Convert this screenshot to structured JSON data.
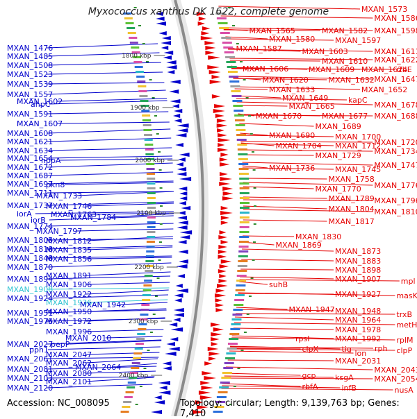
{
  "title": "Myxococcus xanthus DK 1622, complete genome",
  "footer": {
    "accession": "Accession: NC_008095",
    "summary": "Topology: circular; Length: 9,139,763 bp; Genes: 7,410"
  },
  "colors": {
    "forward_strand": "#e60000",
    "reverse_strand": "#0000cc",
    "highlight": "#33c4d4",
    "backbone": "#8a8a8a",
    "tick": "#2e8b2e"
  },
  "scale_ticks": [
    {
      "label": "1800 kbp"
    },
    {
      "label": "1900 kbp"
    },
    {
      "label": "2000 kbp"
    },
    {
      "label": "2100 kbp"
    },
    {
      "label": "2200 kbp"
    },
    {
      "label": "2300 kbp"
    },
    {
      "label": "2400 kbp"
    }
  ],
  "left_labels": [
    {
      "text": "MXAN_1476"
    },
    {
      "text": "MXAN_1485"
    },
    {
      "text": "MXAN_1508"
    },
    {
      "text": "MXAN_1523"
    },
    {
      "text": "MXAN_1539"
    },
    {
      "text": "MXAN_1557"
    },
    {
      "text": "ahpC"
    },
    {
      "text": "MXAN_1602"
    },
    {
      "text": "MXAN_1591"
    },
    {
      "text": "MXAN_1607"
    },
    {
      "text": "MXAN_1608"
    },
    {
      "text": "MXAN_1621"
    },
    {
      "text": "MXAN_1634"
    },
    {
      "text": "MXAN_1654"
    },
    {
      "text": "hppA"
    },
    {
      "text": "MXAN_1672"
    },
    {
      "text": "MXAN_1687"
    },
    {
      "text": "MXAN_1697"
    },
    {
      "text": "pkn8"
    },
    {
      "text": "MXAN_1711"
    },
    {
      "text": "MXAN_1733"
    },
    {
      "text": "MXAN_1737"
    },
    {
      "text": "MXAN_1746"
    },
    {
      "text": "iorA"
    },
    {
      "text": "MXAN_1763"
    },
    {
      "text": "iorB"
    },
    {
      "text": "MXAN_1784"
    },
    {
      "text": "MXAN_1774"
    },
    {
      "text": "MXAN_1797"
    },
    {
      "text": "MXAN_1805"
    },
    {
      "text": "MXAN_1812"
    },
    {
      "text": "MXAN_1818"
    },
    {
      "text": "MXAN_1835"
    },
    {
      "text": "MXAN_1848"
    },
    {
      "text": "MXAN_1856"
    },
    {
      "text": "MXAN_1870"
    },
    {
      "text": "MXAN_1891"
    },
    {
      "text": "MXAN_1894"
    },
    {
      "text": "MXAN_1906"
    },
    {
      "text": "MXAN_1908",
      "highlight": true
    },
    {
      "text": "MXAN_1922"
    },
    {
      "text": "MXAN_1924"
    },
    {
      "text": "MXAN_1936",
      "highlight": true
    },
    {
      "text": "MXAN_1942"
    },
    {
      "text": "MXAN_1950"
    },
    {
      "text": "MXAN_1951"
    },
    {
      "text": "MXAN_1972"
    },
    {
      "text": "MXAN_1975"
    },
    {
      "text": "MXAN_1996"
    },
    {
      "text": "MXAN_2010"
    },
    {
      "text": "MXAN_2027"
    },
    {
      "text": "pepP"
    },
    {
      "text": "pph1"
    },
    {
      "text": "MXAN_2047"
    },
    {
      "text": "MXAN_2061"
    },
    {
      "text": "MXAN_2062"
    },
    {
      "text": "MXAN_2064"
    },
    {
      "text": "MXAN_2081"
    },
    {
      "text": "MXAN_2080"
    },
    {
      "text": "MXAN_2103"
    },
    {
      "text": "MXAN_2101"
    },
    {
      "text": "MXAN_2120"
    }
  ],
  "right_labels": [
    {
      "text": "MXAN_1573"
    },
    {
      "text": "MXAN_1586"
    },
    {
      "text": "MXAN_1565"
    },
    {
      "text": "MXAN_1582"
    },
    {
      "text": "MXAN_1598"
    },
    {
      "text": "MXAN_1580"
    },
    {
      "text": "MXAN_1597"
    },
    {
      "text": "MXAN_1587"
    },
    {
      "text": "MXAN_1603"
    },
    {
      "text": "MXAN_1611"
    },
    {
      "text": "MXAN_1622"
    },
    {
      "text": "MXAN_1610"
    },
    {
      "text": "MXAN_1606"
    },
    {
      "text": "MXAN_1609"
    },
    {
      "text": "MXAN_1624"
    },
    {
      "text": "rfbE"
    },
    {
      "text": "MXAN_1647"
    },
    {
      "text": "MXAN_1620"
    },
    {
      "text": "MXAN_1632"
    },
    {
      "text": "MXAN_1633"
    },
    {
      "text": "MXAN_1652"
    },
    {
      "text": "MXAN_1649"
    },
    {
      "text": "kapC"
    },
    {
      "text": "MXAN_1665"
    },
    {
      "text": "MXAN_1678"
    },
    {
      "text": "MXAN_1670"
    },
    {
      "text": "MXAN_1677"
    },
    {
      "text": "MXAN_1688"
    },
    {
      "text": "MXAN_1689"
    },
    {
      "text": "MXAN_1690"
    },
    {
      "text": "MXAN_1700"
    },
    {
      "text": "MXAN_1720"
    },
    {
      "text": "MXAN_1704"
    },
    {
      "text": "MXAN_1712"
    },
    {
      "text": "MXAN_1734"
    },
    {
      "text": "MXAN_1729"
    },
    {
      "text": "MXAN_1747"
    },
    {
      "text": "MXAN_1736"
    },
    {
      "text": "MXAN_1745"
    },
    {
      "text": "MXAN_1758"
    },
    {
      "text": "MXAN_1776"
    },
    {
      "text": "MXAN_1770"
    },
    {
      "text": "MXAN_1789"
    },
    {
      "text": "MXAN_1796"
    },
    {
      "text": "MXAN_1804"
    },
    {
      "text": "MXAN_1810"
    },
    {
      "text": "MXAN_1817"
    },
    {
      "text": "MXAN_1830"
    },
    {
      "text": "MXAN_1869"
    },
    {
      "text": "MXAN_1873"
    },
    {
      "text": "MXAN_1883"
    },
    {
      "text": "MXAN_1898"
    },
    {
      "text": "suhB"
    },
    {
      "text": "MXAN_1907"
    },
    {
      "text": "mpl"
    },
    {
      "text": "MXAN_1927"
    },
    {
      "text": "masK"
    },
    {
      "text": "MXAN_1947"
    },
    {
      "text": "MXAN_1948"
    },
    {
      "text": "trxB"
    },
    {
      "text": "MXAN_1964"
    },
    {
      "text": "metH"
    },
    {
      "text": "MXAN_1978"
    },
    {
      "text": "rpsI"
    },
    {
      "text": "MXAN_1992"
    },
    {
      "text": "rplM"
    },
    {
      "text": "rph"
    },
    {
      "text": "clpX"
    },
    {
      "text": "tig"
    },
    {
      "text": "lon"
    },
    {
      "text": "clpP"
    },
    {
      "text": "MXAN_2031"
    },
    {
      "text": "MXAN_2043"
    },
    {
      "text": "gcp"
    },
    {
      "text": "ksgA"
    },
    {
      "text": "MXAN_2054"
    },
    {
      "text": "rbfA"
    },
    {
      "text": "infB"
    },
    {
      "text": "nusA"
    }
  ]
}
